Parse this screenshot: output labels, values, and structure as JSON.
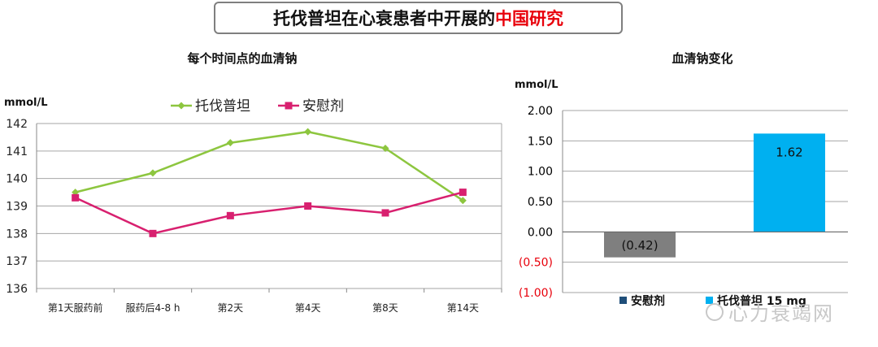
{
  "header": {
    "title_main": "托伐普坦在心衰患者中开展的",
    "title_highlight": "中国研究"
  },
  "chart_data": [
    {
      "type": "line",
      "title": "每个时间点的血清钠",
      "ylabel": "mmol/L",
      "categories": [
        "第1天服药前",
        "服药后4-8 h",
        "第2天",
        "第4天",
        "第8天",
        "第14天"
      ],
      "y_ticks": [
        "136",
        "137",
        "138",
        "139",
        "140",
        "141",
        "142"
      ],
      "ylim": [
        136,
        142
      ],
      "grid": true,
      "legend": "top-center",
      "series": [
        {
          "name": "托伐普坦",
          "values": [
            139.5,
            140.2,
            141.3,
            141.7,
            141.1,
            139.2
          ],
          "color": "#8dc63f",
          "marker": "diamond"
        },
        {
          "name": "安慰剂",
          "values": [
            139.3,
            138.0,
            138.65,
            139.0,
            138.75,
            139.5
          ],
          "color": "#d8206f",
          "marker": "square"
        }
      ]
    },
    {
      "type": "bar",
      "title": "血清钠变化",
      "ylabel": "mmol/L",
      "y_ticks": [
        {
          "value": 2.0,
          "label": "2.00",
          "color": "#000000"
        },
        {
          "value": 1.5,
          "label": "1.50",
          "color": "#000000"
        },
        {
          "value": 1.0,
          "label": "1.00",
          "color": "#000000"
        },
        {
          "value": 0.5,
          "label": "0.50",
          "color": "#000000"
        },
        {
          "value": 0.0,
          "label": "0.00",
          "color": "#000000"
        },
        {
          "value": -0.5,
          "label": "(0.50)",
          "color": "#e8000b"
        },
        {
          "value": -1.0,
          "label": "(1.00)",
          "color": "#e8000b"
        }
      ],
      "ylim": [
        -1.0,
        2.0
      ],
      "grid": true,
      "legend": "bottom",
      "series": [
        {
          "name": "安慰剂",
          "value": -0.42,
          "label": "(0.42)",
          "color": "#7f7f7f",
          "legend_color": "#1f4e79"
        },
        {
          "name": "托伐普坦 15 mg",
          "value": 1.62,
          "label": "1.62",
          "color": "#00b0f0",
          "legend_color": "#00b0f0"
        }
      ]
    }
  ],
  "watermark": {
    "text": "心力衰竭网"
  }
}
